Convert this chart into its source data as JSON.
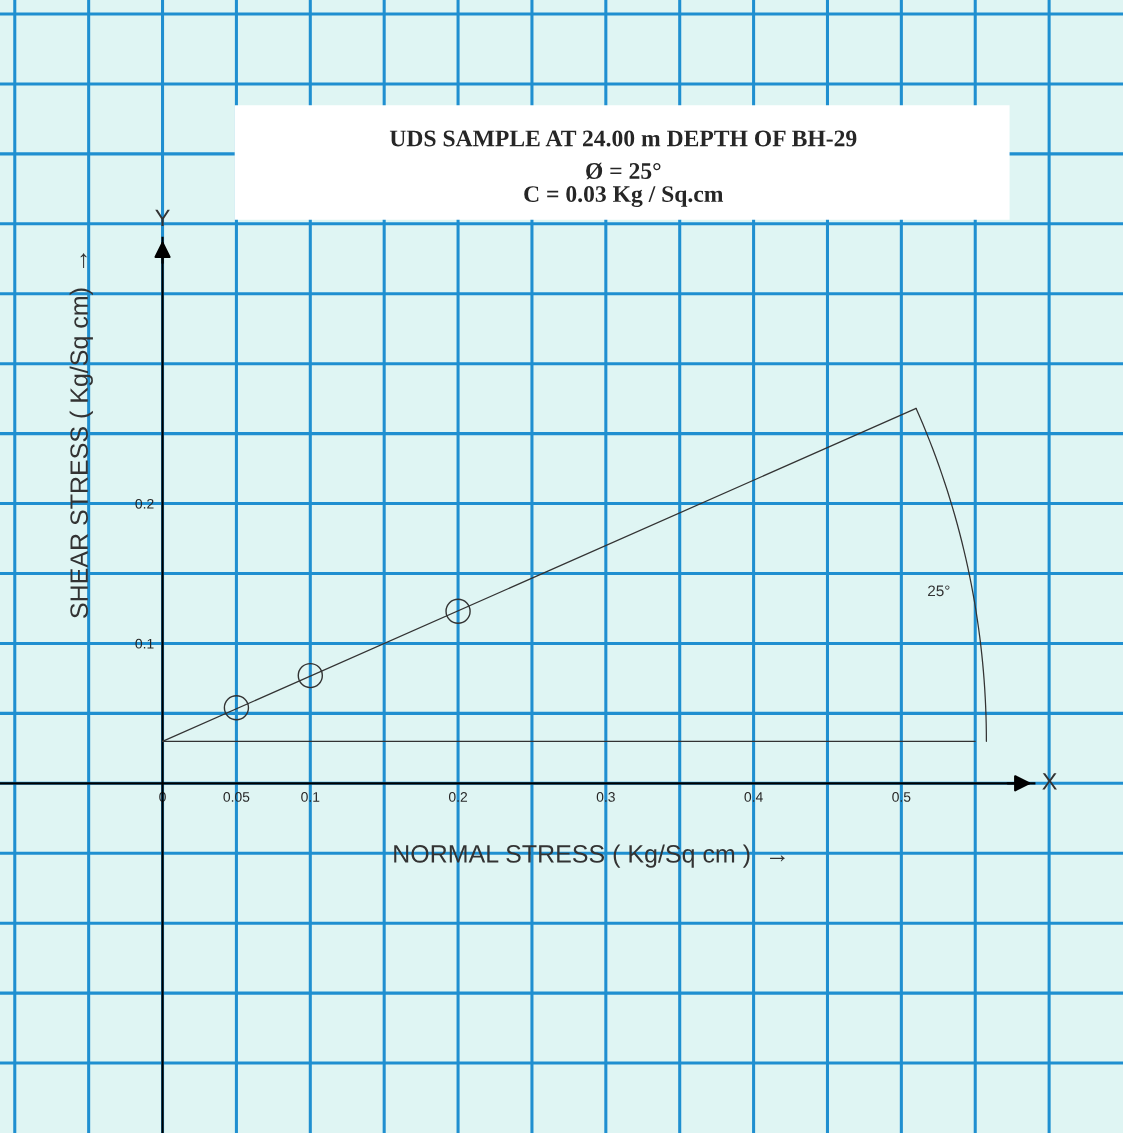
{
  "chart_data": {
    "type": "scatter",
    "title": "UDS SAMPLE AT 24.00 m DEPTH OF BH-29",
    "subtitle": "Ø = 25°\nC = 0.03 Kg / Sq.cm",
    "xlabel": "NORMAL STRESS ( Kg/Sq cm )  →",
    "ylabel": "SHEAR STRESS ( Kg/Sq cm)  →",
    "annotations": [
      "25°",
      "X",
      "Y"
    ],
    "series": [
      {
        "color": "#333333",
        "marker": "circle",
        "x": [
          0.05,
          0.1,
          0.2
        ],
        "values": [
          0.054,
          0.077,
          0.123
        ]
      },
      {
        "type": "line",
        "color": "#333333",
        "marker": "none",
        "line_style": "solid",
        "x": [
          0,
          0.51
        ],
        "values": [
          0.03,
          0.268
        ]
      }
    ],
    "ref_lines": [
      {
        "axis": "y",
        "value": 0.03,
        "color": "#333333"
      }
    ],
    "xlim": [
      -0.11,
      0.65
    ],
    "ylim": [
      -0.25,
      0.56
    ],
    "xticks": [
      {
        "value": -0.1,
        "label": null
      },
      {
        "value": -0.05,
        "label": null
      },
      {
        "value": 0,
        "label": "0"
      },
      {
        "value": 0.05,
        "label": "0.05"
      },
      0.1,
      {
        "value": 0.15,
        "label": null
      },
      0.2,
      {
        "value": 0.25,
        "label": null
      },
      0.3,
      {
        "value": 0.35,
        "label": null
      },
      0.4,
      {
        "value": 0.45,
        "label": null
      },
      0.5,
      {
        "value": 0.55,
        "label": null
      },
      {
        "value": 0.6,
        "label": null
      }
    ],
    "yticks": [
      {
        "value": -0.2,
        "label": null
      },
      {
        "value": -0.15,
        "label": null
      },
      {
        "value": -0.1,
        "label": null
      },
      {
        "value": -0.05,
        "label": null
      },
      {
        "value": 0,
        "label": null
      },
      {
        "value": 0.05,
        "label": null
      },
      0.1,
      {
        "value": 0.15,
        "label": null
      },
      0.2,
      {
        "value": 0.25,
        "label": null
      },
      {
        "value": 0.3,
        "label": null
      },
      {
        "value": 0.35,
        "label": null
      },
      {
        "value": 0.4,
        "label": null
      },
      {
        "value": 0.45,
        "label": null
      },
      {
        "value": 0.5,
        "label": null
      },
      {
        "value": 0.55,
        "label": null
      }
    ],
    "grid": true,
    "legend": false
  }
}
